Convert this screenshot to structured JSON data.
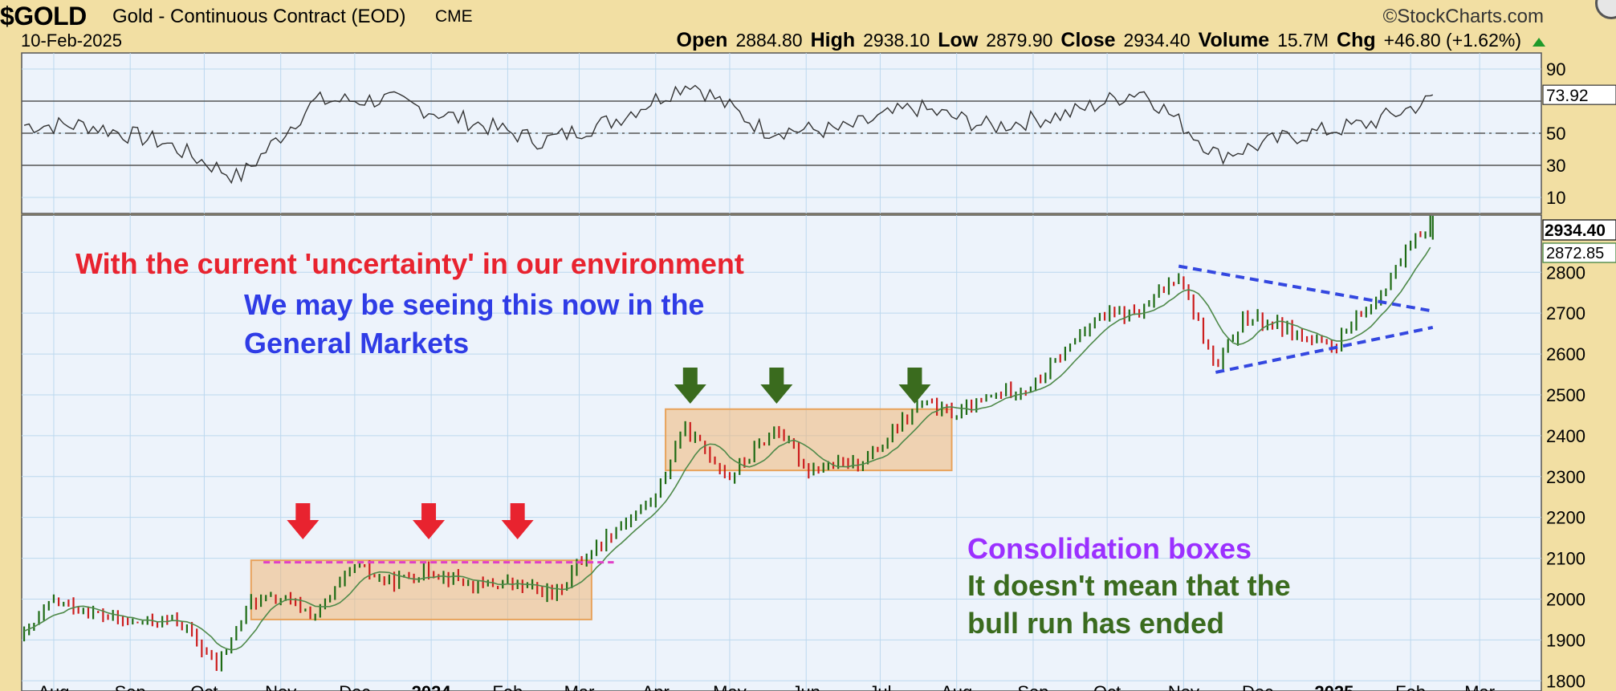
{
  "header": {
    "symbol": "$GOLD",
    "name": "Gold - Continuous Contract (EOD)",
    "exchange": "CME",
    "logo": "©StockCharts.com",
    "date": "10-Feb-2025",
    "open_label": "Open",
    "open": "2884.80",
    "high_label": "High",
    "high": "2938.10",
    "low_label": "Low",
    "low": "2879.90",
    "close_label": "Close",
    "close": "2934.40",
    "volume_label": "Volume",
    "volume": "15.7M",
    "chg_label": "Chg",
    "chg": "+46.80 (+1.62%)",
    "chg_icon": "up-triangle-icon"
  },
  "colors": {
    "frame": "#f2dfa3",
    "plot_bg": "#edf3fb",
    "grid": "#bcd8ee",
    "up_bar": "#1e6b14",
    "down_bar": "#cc1e1e",
    "ma_line": "#4f8a4a",
    "box_fill": "#f0b676",
    "red_arrow": "#e8232f",
    "green_arrow": "#3a6b1e",
    "pink_dash": "#e040c8",
    "blue_dash": "#3347e0",
    "rsi_fill": "#b8a890"
  },
  "chart_data": [
    {
      "type": "line",
      "panel": "rsi",
      "y_ticks": [
        90,
        50,
        30,
        10
      ],
      "y_range": [
        0,
        100
      ],
      "reference_lines": [
        70,
        50,
        30
      ],
      "last_value_label": "73.92",
      "x": [
        "2023-08",
        "2023-09",
        "2023-10",
        "2023-11",
        "2023-12",
        "2024-01",
        "2024-02",
        "2024-03",
        "2024-04",
        "2024-05",
        "2024-06",
        "2024-07",
        "2024-08",
        "2024-09",
        "2024-10",
        "2024-11",
        "2024-12",
        "2025-01",
        "2025-02"
      ],
      "values": [
        55,
        44,
        22,
        70,
        71,
        58,
        45,
        58,
        82,
        52,
        52,
        66,
        54,
        62,
        77,
        36,
        48,
        56,
        73.92
      ]
    },
    {
      "type": "line",
      "panel": "price",
      "style": "ohlc bars with moving average",
      "y_ticks": [
        2800,
        2700,
        2600,
        2500,
        2400,
        2300,
        2200,
        2100,
        2000,
        1900,
        1800
      ],
      "y_range": [
        1775,
        2940
      ],
      "x_labels": [
        "Aug",
        "Sep",
        "Oct",
        "Nov",
        "Dec",
        "2024",
        "Feb",
        "Mar",
        "Apr",
        "May",
        "Jun",
        "Jul",
        "Aug",
        "Sep",
        "Oct",
        "Nov",
        "Dec",
        "2025",
        "Feb",
        "Mar"
      ],
      "series": [
        {
          "x": [
            "2023-07-20",
            "2023-08-01",
            "2023-08-20",
            "2023-09-01",
            "2023-09-20",
            "2023-10-06",
            "2023-10-20",
            "2023-11-01",
            "2023-11-15",
            "2023-12-01",
            "2023-12-15",
            "2024-01-01",
            "2024-01-20",
            "2024-02-01",
            "2024-02-20",
            "2024-03-01",
            "2024-03-15",
            "2024-04-01",
            "2024-04-12",
            "2024-05-01",
            "2024-05-20",
            "2024-06-01",
            "2024-06-20",
            "2024-07-01",
            "2024-07-17",
            "2024-08-01",
            "2024-08-20",
            "2024-09-01",
            "2024-09-26",
            "2024-10-15",
            "2024-10-30",
            "2024-11-14",
            "2024-11-25",
            "2024-12-10",
            "2024-12-30",
            "2025-01-15",
            "2025-02-01",
            "2025-02-10"
          ],
          "values": [
            1910,
            1995,
            1960,
            1940,
            1950,
            1835,
            1995,
            2000,
            1960,
            2080,
            2040,
            2070,
            2030,
            2040,
            2010,
            2090,
            2170,
            2250,
            2420,
            2300,
            2420,
            2320,
            2330,
            2370,
            2480,
            2450,
            2510,
            2520,
            2690,
            2700,
            2800,
            2560,
            2690,
            2670,
            2610,
            2710,
            2860,
            2934.4
          ]
        }
      ],
      "ma_last_value_label": "2872.85",
      "close_last_value_label": "2934.40",
      "annotations": {
        "line1": "With the current 'uncertainty' in our environment",
        "line2": "We may be seeing this now in the",
        "line3": "General Markets",
        "box_title": "Consolidation boxes",
        "box_note1": "It doesn't mean that the",
        "box_note2": "bull run has ended"
      },
      "consolidation_boxes": [
        {
          "x_start": "2023-10-20",
          "x_end": "2024-03-06",
          "y_low": 1950,
          "y_high": 2095
        },
        {
          "x_start": "2024-04-05",
          "x_end": "2024-07-30",
          "y_low": 2315,
          "y_high": 2465
        }
      ],
      "resistance_line": {
        "x_start": "2023-10-25",
        "x_end": "2024-03-15",
        "y": 2090
      },
      "down_arrows_red": [
        "2023-11-10",
        "2023-12-31",
        "2024-02-05"
      ],
      "down_arrows_green": [
        "2024-04-15",
        "2024-05-20",
        "2024-07-15"
      ],
      "triangle": {
        "upper": {
          "x_start": "2024-10-30",
          "y_start": 2815,
          "x_end": "2025-02-10",
          "y_end": 2705
        },
        "lower": {
          "x_start": "2024-11-14",
          "y_start": 2555,
          "x_end": "2025-02-10",
          "y_end": 2665
        }
      }
    }
  ]
}
